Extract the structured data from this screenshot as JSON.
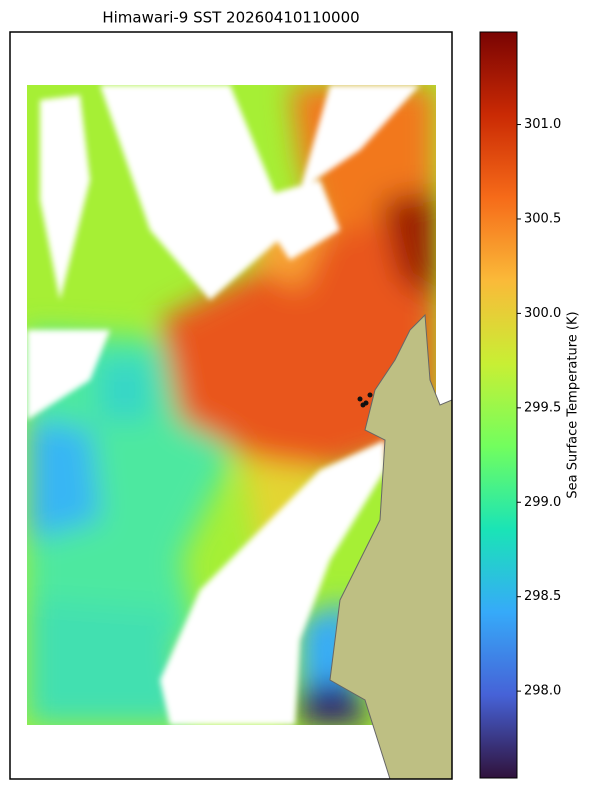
{
  "chart_data": {
    "type": "map",
    "title": "Himawari-9 SST 20260410110000",
    "colorbar_label": "Sea Surface Temperature (K)",
    "clim": [
      297.54,
      301.49
    ],
    "colorbar_ticks": [
      {
        "value": 298,
        "label": "298.0"
      },
      {
        "value": 298.5,
        "label": "298.5"
      },
      {
        "value": 299,
        "label": "299.0"
      },
      {
        "value": 299.5,
        "label": "299.5"
      },
      {
        "value": 300,
        "label": "300.0"
      },
      {
        "value": 300.5,
        "label": "300.5"
      },
      {
        "value": 301,
        "label": "301.0"
      }
    ],
    "colormap": [
      "#30123b",
      "#4662d7",
      "#36aaf9",
      "#1ae4b6",
      "#72fe5e",
      "#c8ef34",
      "#faba39",
      "#f66b19",
      "#ca2a04",
      "#7a0403"
    ],
    "land_color": "#bebf83"
  }
}
